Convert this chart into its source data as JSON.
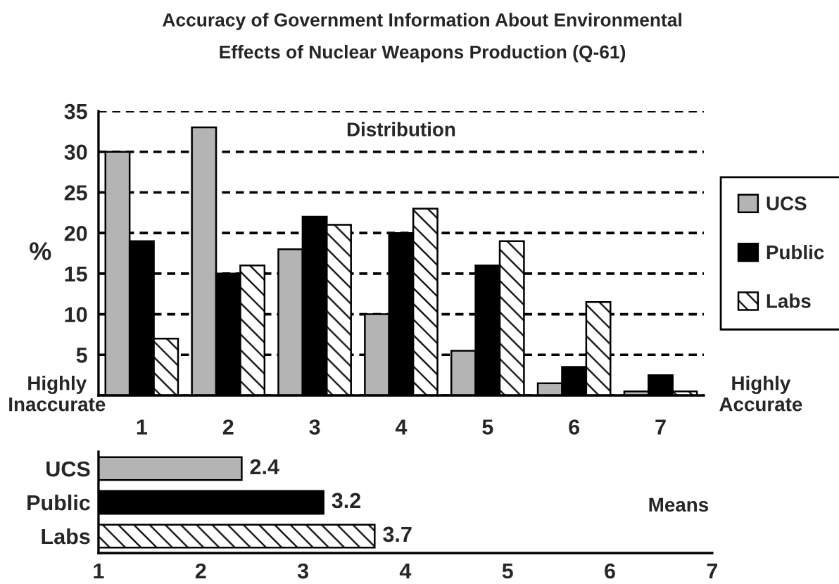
{
  "chart_data": [
    {
      "type": "bar",
      "title": "Accuracy of Government Information About Environmental\nEffects of Nuclear Weapons Production (Q-61)",
      "ylabel": "%",
      "categories": [
        "1",
        "2",
        "3",
        "4",
        "5",
        "6",
        "7"
      ],
      "series": [
        {
          "name": "UCS",
          "color": "#b4b4b4",
          "values": [
            30,
            33,
            18,
            10,
            5.5,
            1.5,
            0.5
          ]
        },
        {
          "name": "Public",
          "color": "#000000",
          "values": [
            19,
            15,
            22,
            20,
            16,
            3.5,
            2.5
          ]
        },
        {
          "name": "Labs",
          "color": "#ffffff",
          "values": [
            7,
            16,
            21,
            23,
            19,
            11.5,
            0.5
          ]
        }
      ],
      "ylim": [
        0,
        35
      ],
      "yticks": [
        {
          "value": 0,
          "label": null
        },
        5,
        10,
        15,
        20,
        25,
        30,
        35
      ],
      "grid": "y",
      "legend": "right",
      "annotations": [
        "Distribution",
        "Highly\nInaccurate",
        "Highly\nAccurate"
      ]
    },
    {
      "type": "bar",
      "orientation": "horizontal",
      "categories": [
        "UCS",
        "Public",
        "Labs"
      ],
      "values": [
        2.4,
        3.2,
        3.7
      ],
      "colors": [
        "#b4b4b4",
        "#000000",
        "#ffffff"
      ],
      "xlim": [
        1,
        7
      ],
      "xticks": [
        1,
        2,
        3,
        4,
        5,
        6,
        7
      ],
      "data_labels": true,
      "annotations": [
        "Means"
      ]
    }
  ]
}
